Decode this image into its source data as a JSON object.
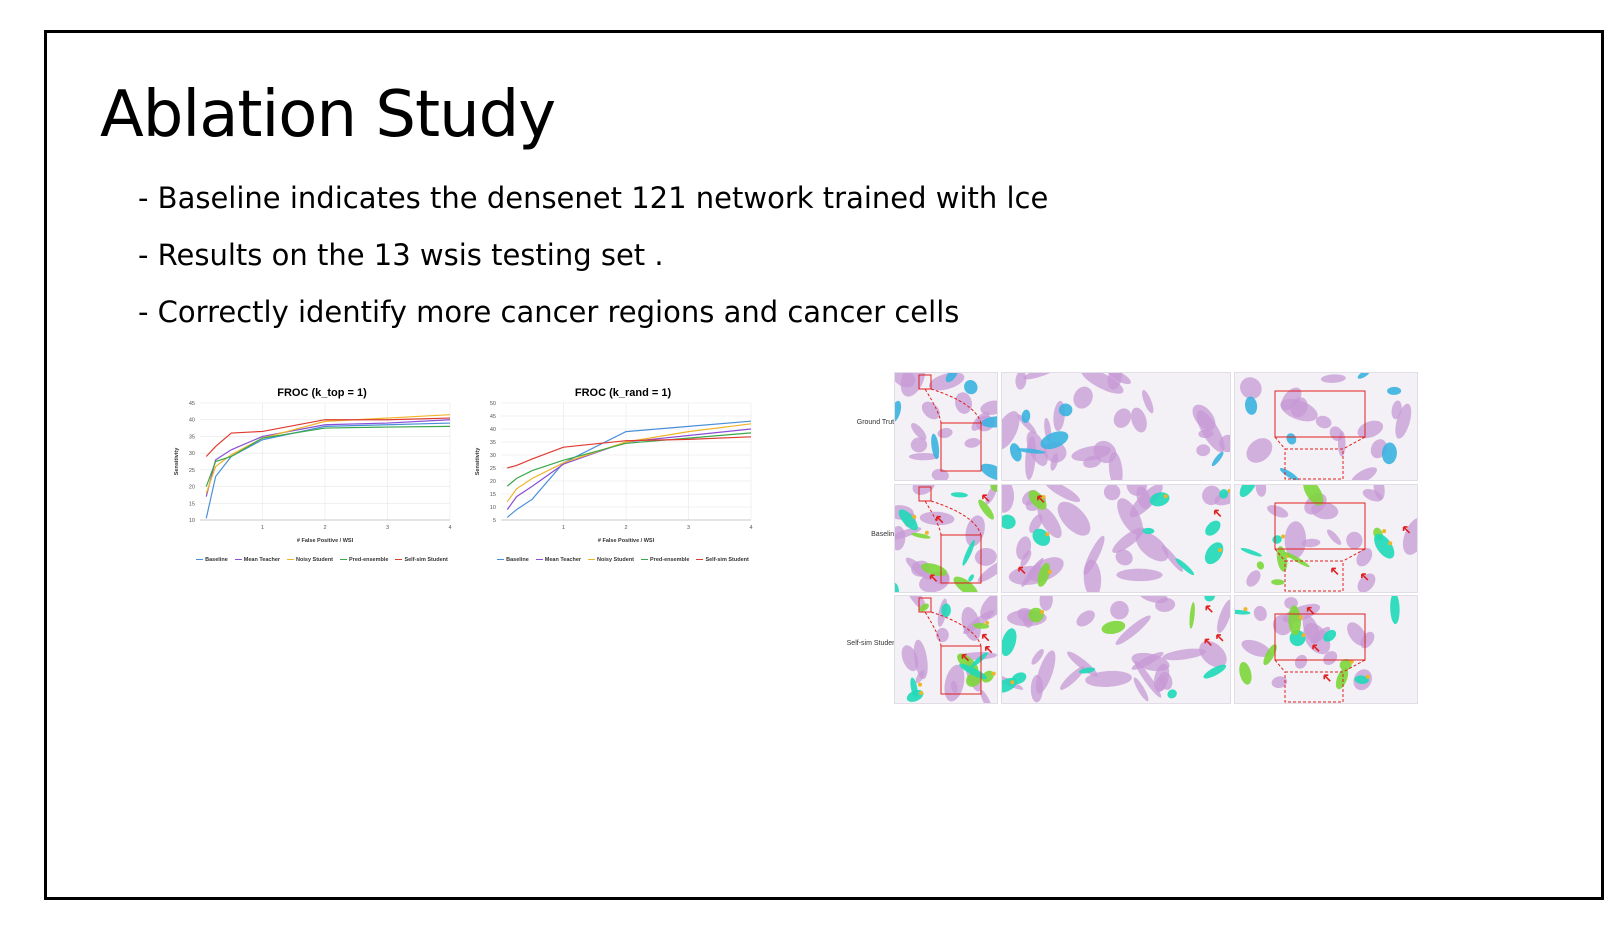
{
  "slide": {
    "title": "Ablation Study",
    "bullets": [
      "- Baseline indicates the densenet 121 network trained with lce",
      "- Results on the 13 wsis testing set .",
      "- Correctly identify more cancer regions and cancer cells"
    ]
  },
  "series_colors": {
    "Baseline": "#4a90d9",
    "Mean Teacher": "#8a4fd6",
    "Noisy Student": "#f0b429",
    "Pred-ensemble": "#3aa84a",
    "Self-sim Student": "#e03a2f"
  },
  "chart_data": [
    {
      "type": "line",
      "title": "FROC",
      "title_math": "(k_top = 1)",
      "xlabel": "# False Positive / WSI",
      "ylabel": "Sensitivity",
      "xlim": [
        0,
        4
      ],
      "ylim": [
        10,
        45
      ],
      "xticks": [
        1,
        2,
        3,
        4
      ],
      "yticks": [
        10,
        15,
        20,
        25,
        30,
        35,
        40,
        45
      ],
      "legend": "bottom",
      "x": [
        0.1,
        0.25,
        0.5,
        1,
        2,
        3,
        4
      ],
      "series": [
        {
          "name": "Baseline",
          "values": [
            10.5,
            23,
            29,
            34,
            38,
            38.5,
            39
          ]
        },
        {
          "name": "Mean Teacher",
          "values": [
            17,
            28,
            31,
            35,
            38.5,
            39,
            40
          ]
        },
        {
          "name": "Noisy Student",
          "values": [
            18,
            26,
            29.5,
            34.5,
            39.5,
            40.5,
            41.5
          ]
        },
        {
          "name": "Pred-ensemble",
          "values": [
            20,
            27.5,
            29,
            34.5,
            37.5,
            37.8,
            38
          ]
        },
        {
          "name": "Self-sim Student",
          "values": [
            29,
            32,
            36,
            36.5,
            40,
            40,
            40.5
          ]
        }
      ]
    },
    {
      "type": "line",
      "title": "FROC",
      "title_math": "(k_rand = 1)",
      "xlabel": "# False Positive / WSI",
      "ylabel": "Sensitivity",
      "xlim": [
        0,
        4
      ],
      "ylim": [
        5,
        50
      ],
      "xticks": [
        1,
        2,
        3,
        4
      ],
      "yticks": [
        5,
        10,
        15,
        20,
        25,
        30,
        35,
        40,
        45,
        50
      ],
      "legend": "bottom",
      "x": [
        0.1,
        0.25,
        0.5,
        1,
        2,
        3,
        4
      ],
      "series": [
        {
          "name": "Baseline",
          "values": [
            6,
            9,
            13,
            27,
            39,
            41,
            43
          ]
        },
        {
          "name": "Mean Teacher",
          "values": [
            9,
            14,
            18,
            26.5,
            35,
            37.5,
            40
          ]
        },
        {
          "name": "Noisy Student",
          "values": [
            12,
            17,
            21,
            27,
            35,
            39,
            42
          ]
        },
        {
          "name": "Pred-ensemble",
          "values": [
            18,
            21,
            24,
            28,
            34.5,
            36.5,
            38.5
          ]
        },
        {
          "name": "Self-sim Student",
          "values": [
            25,
            26,
            28.5,
            33,
            35.5,
            36,
            37
          ]
        }
      ]
    }
  ],
  "wsi_panel": {
    "row_labels": [
      "Ground Truth",
      "Baseline",
      "Self-sim Student"
    ]
  }
}
